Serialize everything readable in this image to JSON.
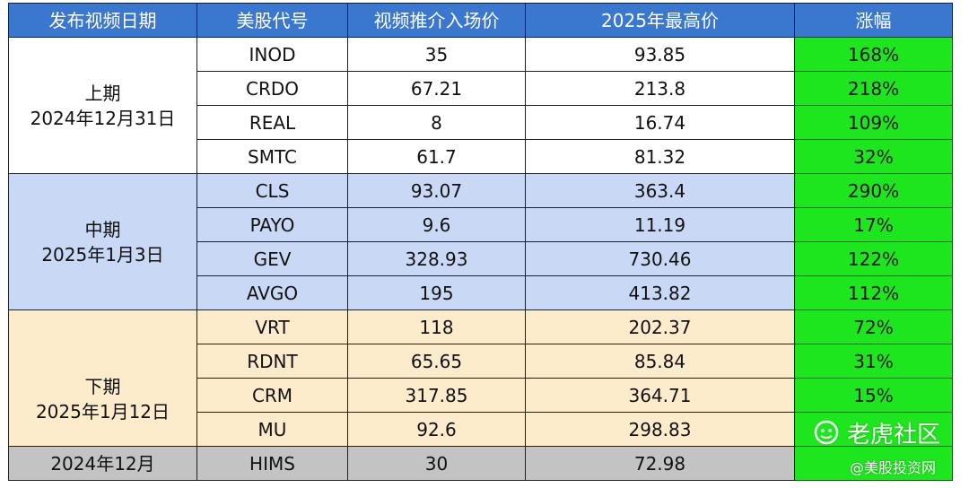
{
  "headers": [
    "发布视频日期",
    "美股代号",
    "视频推介入场价",
    "2025年最高价",
    "涨幅"
  ],
  "groups": [
    {
      "period_line1": "上期",
      "period_line2": "2024年12月31日",
      "rows": [
        {
          "ticker": "INOD",
          "entry": "35",
          "high": "93.85",
          "gain": "168%"
        },
        {
          "ticker": "CRDO",
          "entry": "67.21",
          "high": "213.8",
          "gain": "218%"
        },
        {
          "ticker": "REAL",
          "entry": "8",
          "high": "16.74",
          "gain": "109%"
        },
        {
          "ticker": "SMTC",
          "entry": "61.7",
          "high": "81.32",
          "gain": "32%"
        }
      ]
    },
    {
      "period_line1": "中期",
      "period_line2": "2025年1月3日",
      "rows": [
        {
          "ticker": "CLS",
          "entry": "93.07",
          "high": "363.4",
          "gain": "290%"
        },
        {
          "ticker": "PAYO",
          "entry": "9.6",
          "high": "11.19",
          "gain": "17%"
        },
        {
          "ticker": "GEV",
          "entry": "328.93",
          "high": "730.46",
          "gain": "122%"
        },
        {
          "ticker": "AVGO",
          "entry": "195",
          "high": "413.82",
          "gain": "112%"
        }
      ]
    },
    {
      "period_line1": "下期",
      "period_line2": "2025年1月12日",
      "rows": [
        {
          "ticker": "VRT",
          "entry": "118",
          "high": "202.37",
          "gain": "72%"
        },
        {
          "ticker": "RDNT",
          "entry": "65.65",
          "high": "85.84",
          "gain": "31%"
        },
        {
          "ticker": "CRM",
          "entry": "317.85",
          "high": "364.71",
          "gain": "15%"
        },
        {
          "ticker": "MU",
          "entry": "92.6",
          "high": "298.83",
          "gain": ""
        }
      ]
    },
    {
      "period_line1": "2024年12月",
      "period_line2": "",
      "rows": [
        {
          "ticker": "HIMS",
          "entry": "30",
          "high": "72.98",
          "gain": ""
        }
      ]
    }
  ],
  "watermark": {
    "logo_text": "老虎社区",
    "handle": "@美股投资网"
  },
  "colors": {
    "header_bg": "#3a78d0",
    "group_1_bg": "#ffffff",
    "group_2_bg": "#c9d8f5",
    "group_3_bg": "#fdeccb",
    "group_4_bg": "#c3c3c3",
    "gain_bg": "#1ee61e"
  }
}
